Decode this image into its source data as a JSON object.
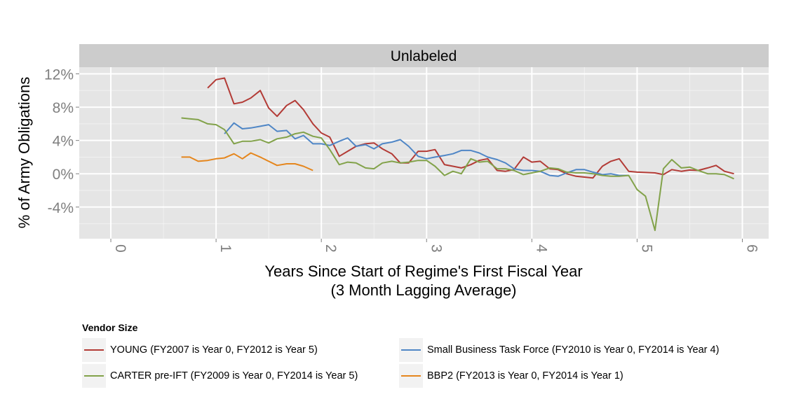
{
  "chart_data": {
    "type": "line",
    "title": "",
    "panel_title": "Unlabeled",
    "xlabel": "Years Since Start of Regime's First Fiscal Year",
    "xlabel_sub": "(3 Month Lagging Average)",
    "ylabel": "% of Army Obligations",
    "xlim": [
      -0.3,
      6.25
    ],
    "ylim": [
      -7.8,
      12.8
    ],
    "x_ticks": [
      0,
      1,
      2,
      3,
      4,
      5,
      6
    ],
    "x_tick_labels": [
      "0",
      "1",
      "2",
      "3",
      "4",
      "5",
      "6"
    ],
    "y_ticks": [
      -4,
      0,
      4,
      8,
      12
    ],
    "y_tick_labels": [
      "-4%",
      "0%",
      "4%",
      "8%",
      "12%"
    ],
    "grid": true,
    "legend": {
      "title": "Vendor Size",
      "placement": "bottom"
    },
    "series": [
      {
        "name": "YOUNG (FY2007 is Year 0, FY2012 is Year 5)",
        "color": "#b33b36",
        "x": [
          0.92,
          1.0,
          1.08,
          1.17,
          1.25,
          1.33,
          1.42,
          1.5,
          1.58,
          1.67,
          1.75,
          1.83,
          1.92,
          2.0,
          2.08,
          2.17,
          2.25,
          2.33,
          2.42,
          2.5,
          2.58,
          2.67,
          2.75,
          2.83,
          2.92,
          3.0,
          3.08,
          3.17,
          3.25,
          3.33,
          3.42,
          3.5,
          3.58,
          3.67,
          3.75,
          3.83,
          3.92,
          4.0,
          4.08,
          4.17,
          4.25,
          4.33,
          4.42,
          4.5,
          4.58,
          4.67,
          4.75,
          4.83,
          4.92,
          5.0,
          5.08,
          5.17,
          5.25,
          5.33,
          5.42,
          5.5,
          5.58,
          5.67,
          5.75,
          5.83,
          5.92
        ],
        "values": [
          10.3,
          11.3,
          11.5,
          8.4,
          8.6,
          9.1,
          10.0,
          7.9,
          6.9,
          8.2,
          8.8,
          7.7,
          6.0,
          4.9,
          4.4,
          2.1,
          2.7,
          3.3,
          3.6,
          3.7,
          3.0,
          2.4,
          1.3,
          1.3,
          2.7,
          2.7,
          2.9,
          1.1,
          0.9,
          0.7,
          1.1,
          1.6,
          1.8,
          0.4,
          0.3,
          0.5,
          2.0,
          1.4,
          1.5,
          0.6,
          0.5,
          0.0,
          -0.3,
          -0.4,
          -0.5,
          0.9,
          1.5,
          1.8,
          0.3,
          0.2,
          0.15,
          0.1,
          -0.1,
          0.5,
          0.3,
          0.45,
          0.4,
          0.7,
          1.0,
          0.3,
          0.0
        ]
      },
      {
        "name": "Small Business Task Force (FY2010 is Year 0, FY2014 is Year 4)",
        "color": "#4f86c6",
        "x": [
          1.08,
          1.17,
          1.25,
          1.33,
          1.42,
          1.5,
          1.58,
          1.67,
          1.75,
          1.83,
          1.92,
          2.0,
          2.08,
          2.17,
          2.25,
          2.33,
          2.42,
          2.5,
          2.58,
          2.67,
          2.75,
          2.83,
          2.92,
          3.0,
          3.08,
          3.17,
          3.25,
          3.33,
          3.42,
          3.5,
          3.58,
          3.67,
          3.75,
          3.83,
          3.92,
          4.0,
          4.08,
          4.17,
          4.25,
          4.33,
          4.42,
          4.5,
          4.58,
          4.67,
          4.75,
          4.83,
          4.92
        ],
        "values": [
          4.8,
          6.1,
          5.4,
          5.5,
          5.7,
          5.9,
          5.1,
          5.2,
          4.2,
          4.6,
          3.6,
          3.6,
          3.4,
          3.9,
          4.3,
          3.3,
          3.5,
          3.0,
          3.6,
          3.8,
          4.1,
          3.3,
          2.1,
          1.8,
          2.0,
          2.2,
          2.4,
          2.8,
          2.8,
          2.5,
          2.0,
          1.7,
          1.3,
          0.6,
          0.4,
          0.4,
          0.3,
          -0.2,
          -0.3,
          0.1,
          0.5,
          0.5,
          0.2,
          -0.1,
          0.0,
          -0.2,
          -0.2
        ]
      },
      {
        "name": "CARTER pre-IFT (FY2009 is Year 0, FY2014 is Year 5)",
        "color": "#82a24a",
        "x": [
          0.67,
          0.75,
          0.83,
          0.92,
          1.0,
          1.08,
          1.17,
          1.25,
          1.33,
          1.42,
          1.5,
          1.58,
          1.67,
          1.75,
          1.83,
          1.92,
          2.0,
          2.08,
          2.17,
          2.25,
          2.33,
          2.42,
          2.5,
          2.58,
          2.67,
          2.75,
          2.83,
          2.92,
          3.0,
          3.08,
          3.17,
          3.25,
          3.33,
          3.42,
          3.5,
          3.58,
          3.67,
          3.75,
          3.83,
          3.92,
          4.0,
          4.08,
          4.17,
          4.25,
          4.33,
          4.42,
          4.5,
          4.58,
          4.67,
          4.75,
          4.83,
          4.92,
          5.0,
          5.08,
          5.17,
          5.25,
          5.33,
          5.42,
          5.5,
          5.58,
          5.67,
          5.75,
          5.83,
          5.92
        ],
        "values": [
          6.7,
          6.6,
          6.5,
          6.0,
          5.9,
          5.3,
          3.6,
          3.9,
          3.9,
          4.1,
          3.7,
          4.2,
          4.4,
          4.8,
          5.0,
          4.5,
          4.3,
          2.9,
          1.1,
          1.4,
          1.3,
          0.7,
          0.6,
          1.3,
          1.5,
          1.3,
          1.4,
          1.6,
          1.6,
          0.9,
          -0.2,
          0.3,
          0.0,
          1.8,
          1.4,
          1.5,
          0.6,
          0.6,
          0.4,
          -0.1,
          0.1,
          0.3,
          0.7,
          0.6,
          0.2,
          0.1,
          0.1,
          0.0,
          -0.2,
          -0.3,
          -0.3,
          -0.2,
          -1.9,
          -2.7,
          -6.8,
          0.6,
          1.7,
          0.7,
          0.8,
          0.4,
          0.0,
          0.0,
          -0.1,
          -0.6
        ]
      },
      {
        "name": "BBP2 (FY2013 is Year 0, FY2014 is Year 1)",
        "color": "#e5861d",
        "x": [
          0.67,
          0.75,
          0.83,
          0.92,
          1.0,
          1.08,
          1.17,
          1.25,
          1.33,
          1.42,
          1.5,
          1.58,
          1.67,
          1.75,
          1.83,
          1.92
        ],
        "values": [
          2.0,
          2.0,
          1.5,
          1.6,
          1.8,
          1.9,
          2.4,
          1.8,
          2.5,
          2.0,
          1.5,
          1.0,
          1.2,
          1.2,
          0.9,
          0.4
        ]
      }
    ]
  }
}
